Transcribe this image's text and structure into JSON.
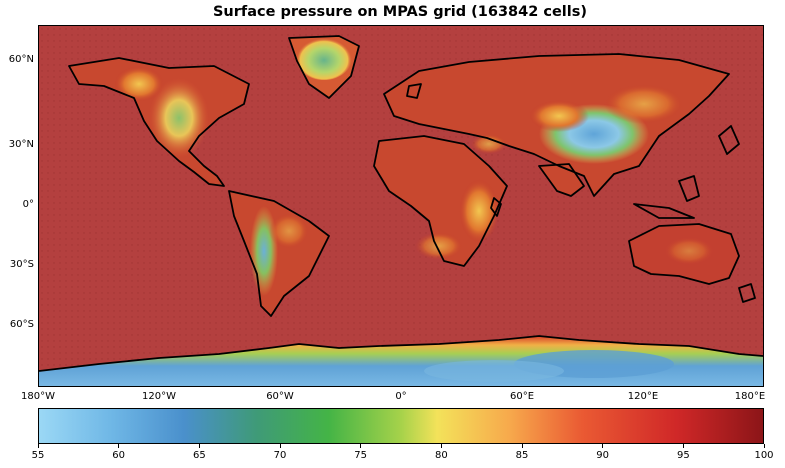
{
  "figure": {
    "title": "Surface pressure on MPAS grid (163842 cells)"
  },
  "map": {
    "projection": "PlateCarree",
    "lat_ticks": [
      "60°N",
      "30°N",
      "0°",
      "30°S",
      "60°S"
    ],
    "lon_ticks": [
      "180°W",
      "120°W",
      "60°W",
      "0°",
      "60°E",
      "120°E",
      "180°E"
    ],
    "coastline_color": "#000000"
  },
  "colorbar": {
    "orientation": "horizontal",
    "min": 55,
    "max": 100,
    "tick_labels": [
      "55",
      "60",
      "65",
      "70",
      "75",
      "80",
      "85",
      "90",
      "95",
      "100"
    ],
    "colors": {
      "low": "#9bd8f5",
      "mid": "#f3e25a",
      "high": "#8c1518"
    }
  }
}
